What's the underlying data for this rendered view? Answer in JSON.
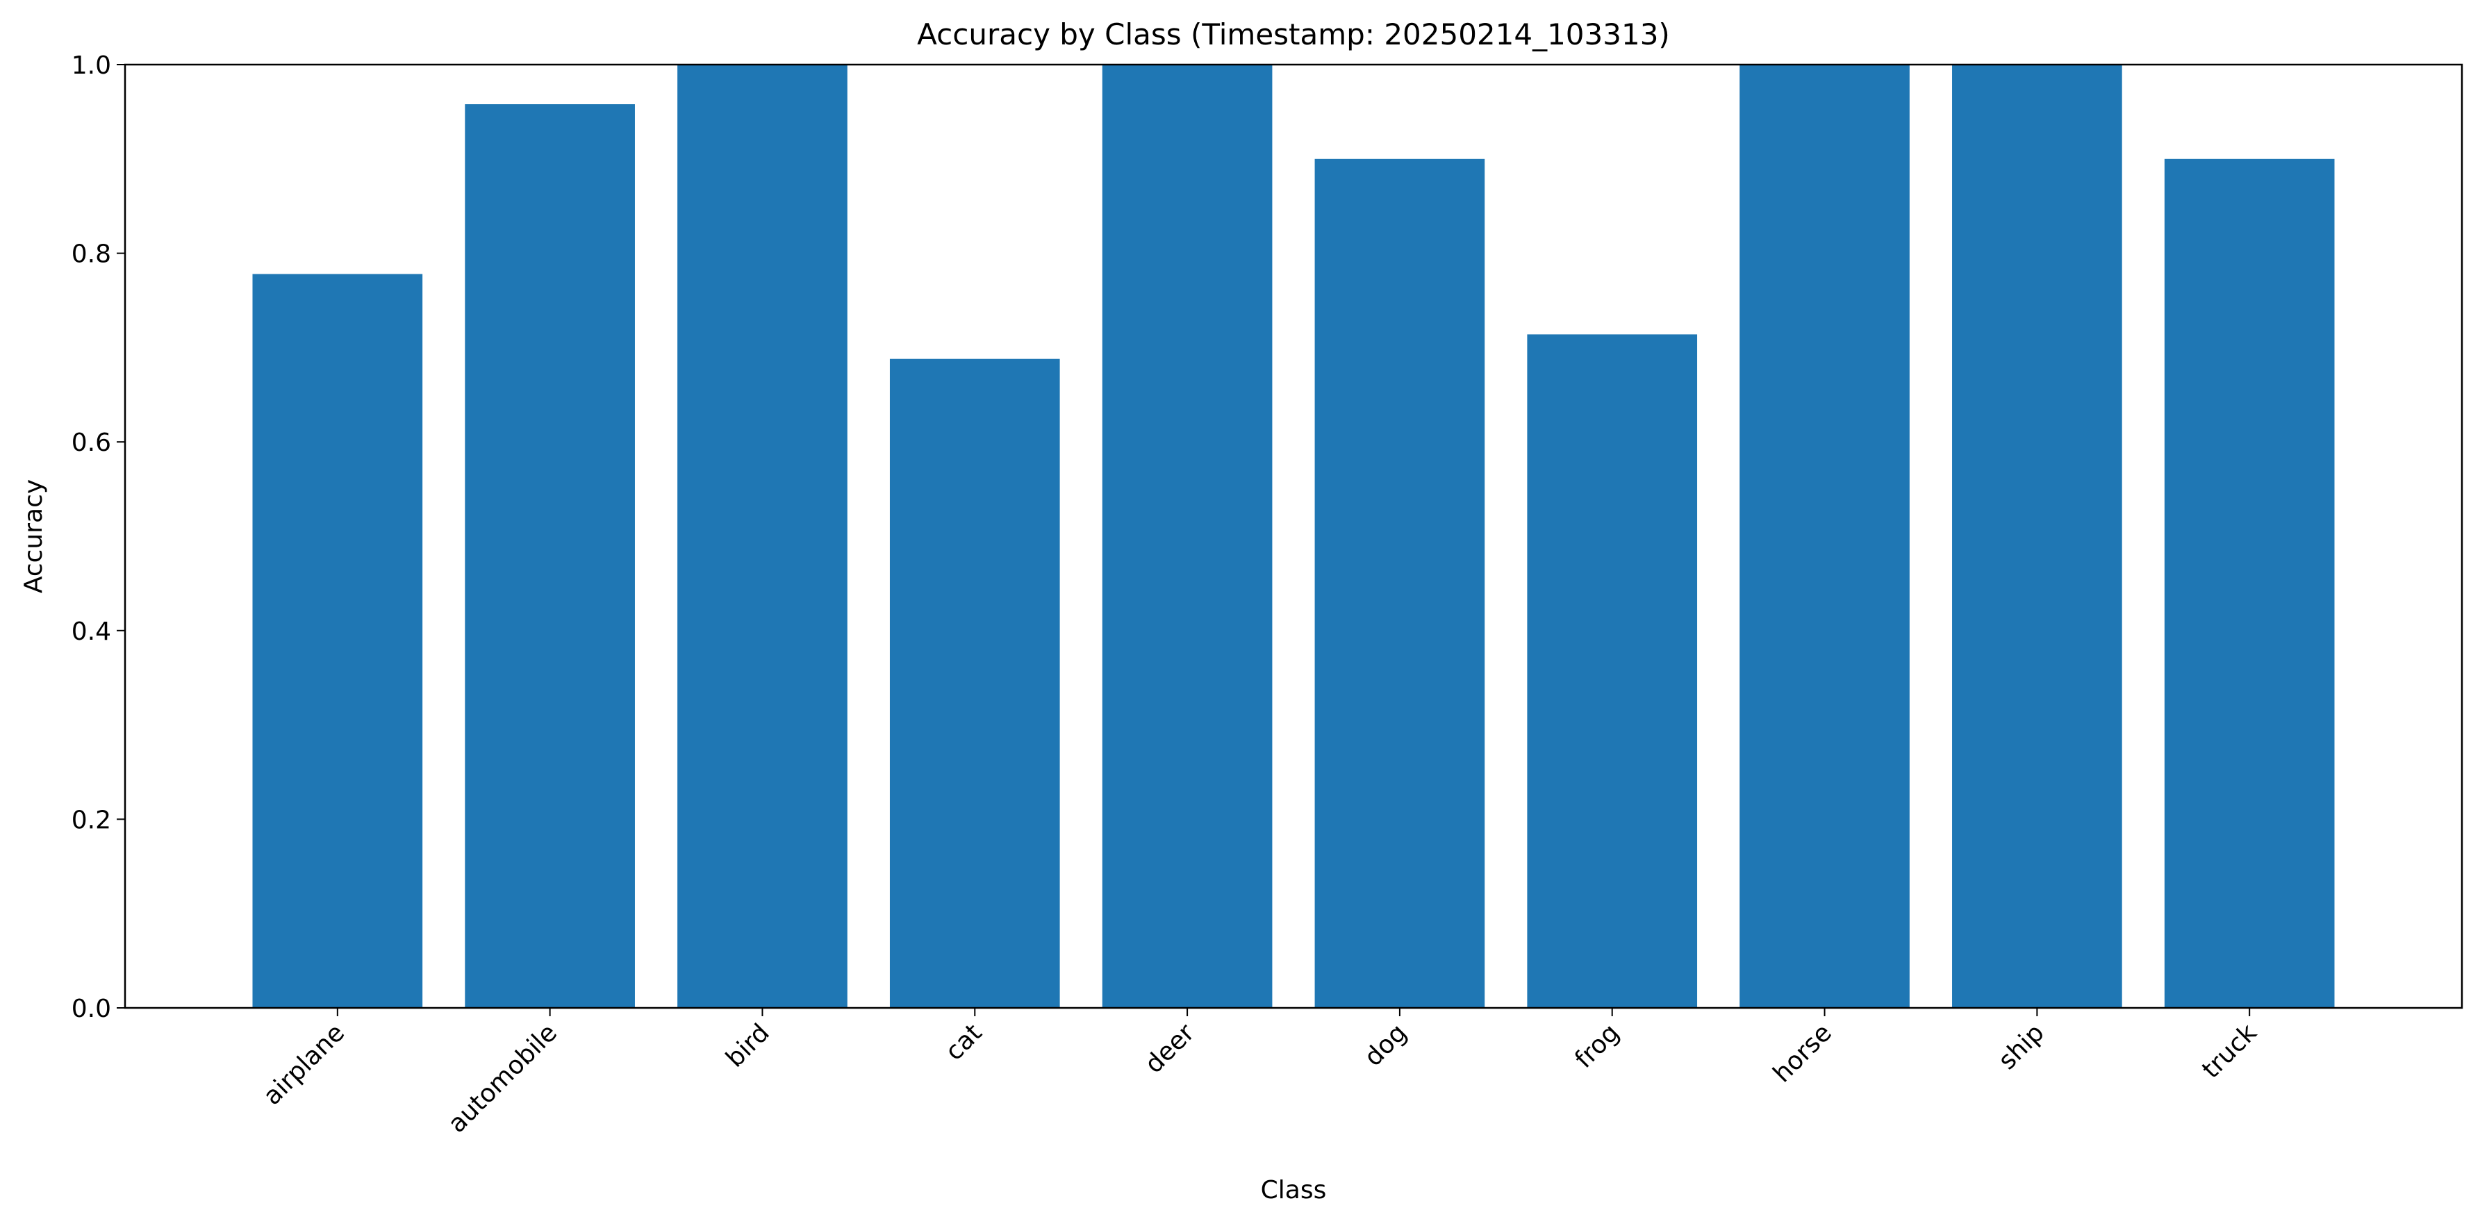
{
  "chart_data": {
    "type": "bar",
    "title": "Accuracy by Class (Timestamp: 20250214_103313)",
    "xlabel": "Class",
    "ylabel": "Accuracy",
    "categories": [
      "airplane",
      "automobile",
      "bird",
      "cat",
      "deer",
      "dog",
      "frog",
      "horse",
      "ship",
      "truck"
    ],
    "values": [
      0.778,
      0.958,
      1.0,
      0.688,
      1.0,
      0.9,
      0.714,
      1.0,
      1.0,
      0.9
    ],
    "ylim": [
      0,
      1.0
    ],
    "yticks": [
      "0.0",
      "0.2",
      "0.4",
      "0.6",
      "0.8",
      "1.0"
    ],
    "grid": false,
    "bar_color": "#1f77b4"
  }
}
